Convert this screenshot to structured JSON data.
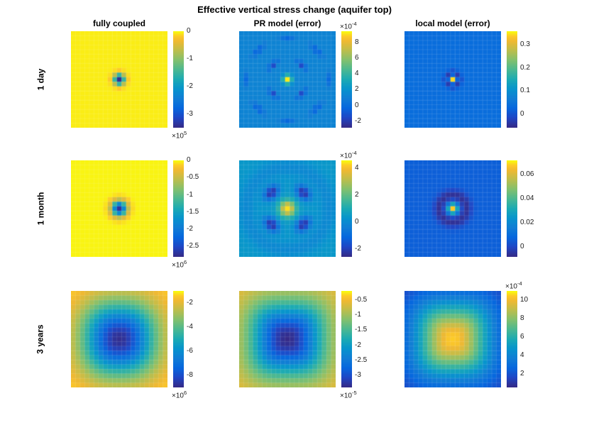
{
  "title": "Effective vertical stress change (aquifer top)",
  "columns": [
    "fully coupled",
    "PR model (error)",
    "local model (error)"
  ],
  "rows": [
    "1 day",
    "1 month",
    "3 years"
  ],
  "colormap": {
    "name": "parula",
    "stops": [
      {
        "t": 0.0,
        "c": "#352a87"
      },
      {
        "t": 0.1,
        "c": "#2046c5"
      },
      {
        "t": 0.2,
        "c": "#0667de"
      },
      {
        "t": 0.3,
        "c": "#117dd5"
      },
      {
        "t": 0.4,
        "c": "#0794cd"
      },
      {
        "t": 0.5,
        "c": "#1baab4"
      },
      {
        "t": 0.6,
        "c": "#4ab892"
      },
      {
        "t": 0.7,
        "c": "#81c06f"
      },
      {
        "t": 0.8,
        "c": "#bbbe4d"
      },
      {
        "t": 0.9,
        "c": "#f0b932"
      },
      {
        "t": 0.95,
        "c": "#fcc928"
      },
      {
        "t": 1.0,
        "c": "#f9fb0e"
      }
    ]
  },
  "chart_data": [
    {
      "id": "r1c1",
      "type": "heatmap",
      "row_label": "1 day",
      "col_label": "fully coupled",
      "row_index": 0,
      "col_index": 0,
      "grid": 21,
      "clim": [
        -350000,
        0
      ],
      "background": -5000,
      "blobs": [
        {
          "x": 0,
          "y": 0,
          "sx": 0.105,
          "sy": 0.105,
          "rot": 0,
          "p": 2,
          "amp": -340000
        }
      ],
      "rings": [],
      "colorbar": {
        "tick_values": [
          0,
          -100000,
          -200000,
          -300000
        ],
        "tick_labels": [
          "0",
          "-1",
          "-2",
          "-3"
        ],
        "exponent": "5",
        "exponent_position": "below"
      }
    },
    {
      "id": "r1c2",
      "type": "heatmap",
      "row_label": "1 day",
      "col_label": "PR model (error)",
      "row_index": 0,
      "col_index": 1,
      "grid": 21,
      "clim": [
        -0.00028,
        0.00094
      ],
      "background": 0.00012,
      "blobs": [
        {
          "x": 0,
          "y": 0,
          "sx": 0.085,
          "sy": 0.085,
          "rot": 0,
          "p": 2,
          "amp": 0.0008
        },
        {
          "x": 0.3,
          "y": 0.3,
          "sx": 0.13,
          "sy": 0.045,
          "rot": 135,
          "p": 2,
          "amp": -0.00032
        },
        {
          "x": -0.3,
          "y": -0.3,
          "sx": 0.13,
          "sy": 0.045,
          "rot": 135,
          "p": 2,
          "amp": -0.00032
        },
        {
          "x": -0.3,
          "y": 0.3,
          "sx": 0.13,
          "sy": 0.045,
          "rot": 45,
          "p": 2,
          "amp": -0.00032
        },
        {
          "x": 0.3,
          "y": -0.3,
          "sx": 0.13,
          "sy": 0.045,
          "rot": 45,
          "p": 2,
          "amp": -0.00032
        },
        {
          "x": 0.6,
          "y": 0.6,
          "sx": 0.16,
          "sy": 0.05,
          "rot": 135,
          "p": 2,
          "amp": -0.00022
        },
        {
          "x": -0.6,
          "y": -0.6,
          "sx": 0.16,
          "sy": 0.05,
          "rot": 135,
          "p": 2,
          "amp": -0.00022
        },
        {
          "x": -0.6,
          "y": 0.6,
          "sx": 0.16,
          "sy": 0.05,
          "rot": 45,
          "p": 2,
          "amp": -0.00022
        },
        {
          "x": 0.6,
          "y": -0.6,
          "sx": 0.16,
          "sy": 0.05,
          "rot": 45,
          "p": 2,
          "amp": -0.00022
        },
        {
          "x": 0.85,
          "y": 0,
          "sx": 0.05,
          "sy": 0.14,
          "rot": 0,
          "p": 2,
          "amp": -0.00015
        },
        {
          "x": -0.85,
          "y": 0,
          "sx": 0.05,
          "sy": 0.14,
          "rot": 0,
          "p": 2,
          "amp": -0.00015
        },
        {
          "x": 0,
          "y": 0.85,
          "sx": 0.14,
          "sy": 0.05,
          "rot": 0,
          "p": 2,
          "amp": -0.00015
        },
        {
          "x": 0,
          "y": -0.85,
          "sx": 0.14,
          "sy": 0.05,
          "rot": 0,
          "p": 2,
          "amp": -0.00015
        }
      ],
      "rings": [],
      "colorbar": {
        "tick_values": [
          0.0008,
          0.0006,
          0.0004,
          0.0002,
          0,
          -0.0002
        ],
        "tick_labels": [
          "8",
          "6",
          "4",
          "2",
          "0",
          "-2"
        ],
        "exponent": "-4",
        "exponent_position": "above"
      }
    },
    {
      "id": "r1c3",
      "type": "heatmap",
      "row_label": "1 day",
      "col_label": "local model (error)",
      "row_index": 0,
      "col_index": 2,
      "grid": 21,
      "clim": [
        -0.06,
        0.36
      ],
      "background": 0.035,
      "blobs": [
        {
          "x": 0,
          "y": 0,
          "sx": 0.06,
          "sy": 0.06,
          "rot": 0,
          "p": 2,
          "amp": 0.31
        }
      ],
      "rings": [
        {
          "r0": 0.14,
          "w": 0.06,
          "amp": -0.07
        }
      ],
      "colorbar": {
        "tick_values": [
          0.3,
          0.2,
          0.1,
          0
        ],
        "tick_labels": [
          "0.3",
          "0.2",
          "0.1",
          "0"
        ],
        "exponent": null,
        "exponent_position": null
      }
    },
    {
      "id": "r2c1",
      "type": "heatmap",
      "row_label": "1 month",
      "col_label": "fully coupled",
      "row_index": 1,
      "col_index": 0,
      "grid": 21,
      "clim": [
        -2800000,
        0
      ],
      "background": -20000,
      "blobs": [
        {
          "x": 0,
          "y": 0,
          "sx": 0.15,
          "sy": 0.15,
          "rot": 0,
          "p": 2,
          "amp": -2700000
        }
      ],
      "rings": [],
      "colorbar": {
        "tick_values": [
          0,
          -500000,
          -1000000,
          -1500000,
          -2000000,
          -2500000
        ],
        "tick_labels": [
          "0",
          "-0.5",
          "-1",
          "-1.5",
          "-2",
          "-2.5"
        ],
        "exponent": "6",
        "exponent_position": "below"
      }
    },
    {
      "id": "r2c2",
      "type": "heatmap",
      "row_label": "1 month",
      "col_label": "PR model (error)",
      "row_index": 1,
      "col_index": 1,
      "grid": 21,
      "clim": [
        -0.00026,
        0.00046
      ],
      "background": 4e-05,
      "blobs": [
        {
          "x": 0,
          "y": 0,
          "sx": 0.16,
          "sy": 0.16,
          "rot": 0,
          "p": 2,
          "amp": 0.0004
        },
        {
          "x": 0.33,
          "y": 0.33,
          "sx": 0.17,
          "sy": 0.12,
          "rot": 135,
          "p": 2,
          "amp": -0.00029
        },
        {
          "x": -0.33,
          "y": -0.33,
          "sx": 0.17,
          "sy": 0.12,
          "rot": 135,
          "p": 2,
          "amp": -0.00029
        },
        {
          "x": -0.33,
          "y": 0.33,
          "sx": 0.17,
          "sy": 0.12,
          "rot": 45,
          "p": 2,
          "amp": -0.00029
        },
        {
          "x": 0.33,
          "y": -0.33,
          "sx": 0.17,
          "sy": 0.12,
          "rot": 45,
          "p": 2,
          "amp": -0.00029
        }
      ],
      "rings": [
        {
          "r0": 0.85,
          "w": 0.18,
          "amp": -5e-05
        }
      ],
      "colorbar": {
        "tick_values": [
          0.0004,
          0.0002,
          0,
          -0.0002
        ],
        "tick_labels": [
          "4",
          "2",
          "0",
          "-2"
        ],
        "exponent": "-4",
        "exponent_position": "above"
      }
    },
    {
      "id": "r2c3",
      "type": "heatmap",
      "row_label": "1 month",
      "col_label": "local model (error)",
      "row_index": 1,
      "col_index": 2,
      "grid": 21,
      "clim": [
        -0.008,
        0.072
      ],
      "background": 0.006,
      "blobs": [
        {
          "x": 0,
          "y": 0,
          "sx": 0.1,
          "sy": 0.1,
          "rot": 0,
          "p": 2,
          "amp": 0.062
        }
      ],
      "rings": [
        {
          "r0": 0.28,
          "w": 0.12,
          "amp": -0.012
        }
      ],
      "colorbar": {
        "tick_values": [
          0.06,
          0.04,
          0.02,
          0
        ],
        "tick_labels": [
          "0.06",
          "0.04",
          "0.02",
          "0"
        ],
        "exponent": null,
        "exponent_position": null
      }
    },
    {
      "id": "r3c1",
      "type": "heatmap",
      "row_label": "3 years",
      "col_label": "fully coupled",
      "row_index": 2,
      "col_index": 0,
      "grid": 21,
      "clim": [
        -9000000,
        -1000000
      ],
      "background": -1100000,
      "blobs": [
        {
          "x": 0,
          "y": 0,
          "sx": 0.75,
          "sy": 0.75,
          "rot": 0,
          "p": 2.4,
          "amp": -7800000
        }
      ],
      "rings": [],
      "colorbar": {
        "tick_values": [
          -2000000,
          -4000000,
          -6000000,
          -8000000
        ],
        "tick_labels": [
          "-2",
          "-4",
          "-6",
          "-8"
        ],
        "exponent": "6",
        "exponent_position": "below"
      }
    },
    {
      "id": "r3c2",
      "type": "heatmap",
      "row_label": "3 years",
      "col_label": "PR model (error)",
      "row_index": 2,
      "col_index": 1,
      "grid": 21,
      "clim": [
        -3.4e-05,
        -2e-06
      ],
      "background": -4.5e-06,
      "blobs": [
        {
          "x": 0,
          "y": 0,
          "sx": 0.75,
          "sy": 0.75,
          "rot": 0,
          "p": 3,
          "amp": -2.95e-05
        }
      ],
      "rings": [],
      "colorbar": {
        "tick_values": [
          -5e-06,
          -1e-05,
          -1.5e-05,
          -2e-05,
          -2.5e-05,
          -3e-05
        ],
        "tick_labels": [
          "-0.5",
          "-1",
          "-1.5",
          "-2",
          "-2.5",
          "-3"
        ],
        "exponent": "-5",
        "exponent_position": "below"
      }
    },
    {
      "id": "r3c3",
      "type": "heatmap",
      "row_label": "3 years",
      "col_label": "local model (error)",
      "row_index": 2,
      "col_index": 2,
      "grid": 21,
      "clim": [
        5e-05,
        0.0011
      ],
      "background": 0.00012,
      "blobs": [
        {
          "x": 0,
          "y": 0,
          "sx": 0.75,
          "sy": 0.75,
          "rot": 0,
          "p": 3,
          "amp": 0.00093
        }
      ],
      "rings": [],
      "colorbar": {
        "tick_values": [
          0.001,
          0.0008,
          0.0006,
          0.0004,
          0.0002
        ],
        "tick_labels": [
          "10",
          "8",
          "6",
          "4",
          "2"
        ],
        "exponent": "-4",
        "exponent_position": "above"
      }
    }
  ]
}
